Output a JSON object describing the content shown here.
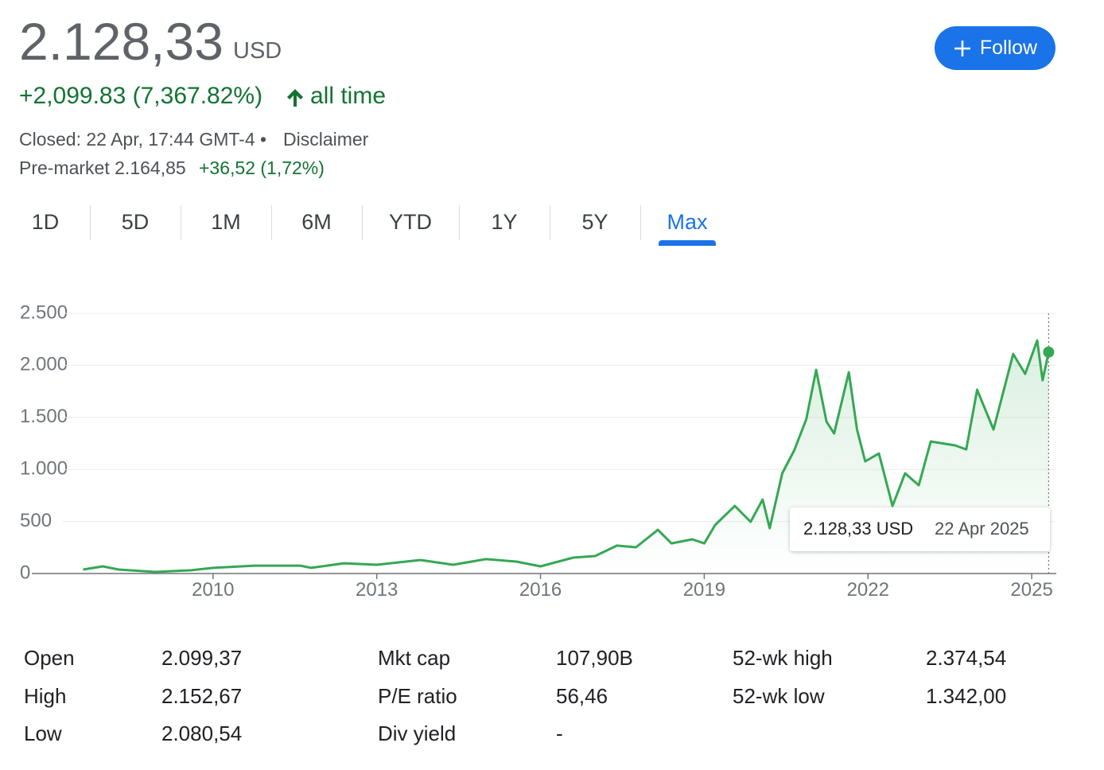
{
  "header": {
    "price": "2.128,33",
    "currency": "USD",
    "change": "+2,099.83 (7,367.82%)",
    "period": "all time",
    "closed": "Closed: 22 Apr, 17:44 GMT-4 •",
    "disclaimer": "Disclaimer",
    "premarket_label": "Pre-market 2.164,85",
    "premarket_change": "+36,52 (1,72%)",
    "follow": "Follow"
  },
  "tabs": {
    "items": [
      "1D",
      "5D",
      "1M",
      "6M",
      "YTD",
      "1Y",
      "5Y",
      "Max"
    ],
    "active": 7
  },
  "chart_data": {
    "type": "line",
    "color": "#34a853",
    "x": [
      2007.62,
      2007.98,
      2008.27,
      2008.94,
      2009.6,
      2010,
      2010.76,
      2011.6,
      2011.8,
      2012.4,
      2013,
      2013.8,
      2014.4,
      2015,
      2015.56,
      2016,
      2016.6,
      2017,
      2017.4,
      2017.75,
      2018.15,
      2018.4,
      2018.78,
      2019,
      2019.2,
      2019.56,
      2019.85,
      2020.07,
      2020.2,
      2020.43,
      2020.65,
      2020.87,
      2021.05,
      2021.24,
      2021.38,
      2021.65,
      2021.8,
      2021.95,
      2022.2,
      2022.45,
      2022.68,
      2022.93,
      2023.15,
      2023.6,
      2023.8,
      2024,
      2024.3,
      2024.66,
      2024.88,
      2025.1,
      2025.2,
      2025.31
    ],
    "values": [
      38,
      69,
      38,
      15,
      31,
      54,
      76,
      76,
      54,
      99,
      84,
      130,
      84,
      138,
      115,
      69,
      153,
      168,
      268,
      252,
      420,
      290,
      329,
      290,
      466,
      650,
      497,
      711,
      436,
      963,
      1185,
      1483,
      1957,
      1460,
      1346,
      1934,
      1384,
      1078,
      1154,
      650,
      963,
      849,
      1269,
      1231,
      1193,
      1766,
      1384,
      2110,
      1919,
      2240,
      1858,
      2128.33
    ],
    "xlim": [
      2006.68,
      2025.45
    ],
    "ylim": [
      0,
      2500
    ],
    "xticks": [
      2010,
      2013,
      2016,
      2019,
      2022,
      2025
    ],
    "yticks": [
      0,
      500,
      {
        "value": 1000,
        "label": "1.000"
      },
      {
        "value": 1500,
        "label": "1.500"
      },
      {
        "value": 2000,
        "label": "2.000"
      },
      {
        "value": 2500,
        "label": "2.500"
      }
    ],
    "grid": true,
    "tooltip": {
      "value_label": "2.128,33 USD",
      "date": "22 Apr 2025"
    }
  },
  "stats": {
    "rows": [
      [
        "Open",
        "2.099,37",
        "Mkt cap",
        "107,90B",
        "52-wk high",
        "2.374,54"
      ],
      [
        "High",
        "2.152,67",
        "P/E ratio",
        "56,46",
        "52-wk low",
        "1.342,00"
      ],
      [
        "Low",
        "2.080,54",
        "Div yield",
        "-",
        "",
        ""
      ]
    ]
  }
}
